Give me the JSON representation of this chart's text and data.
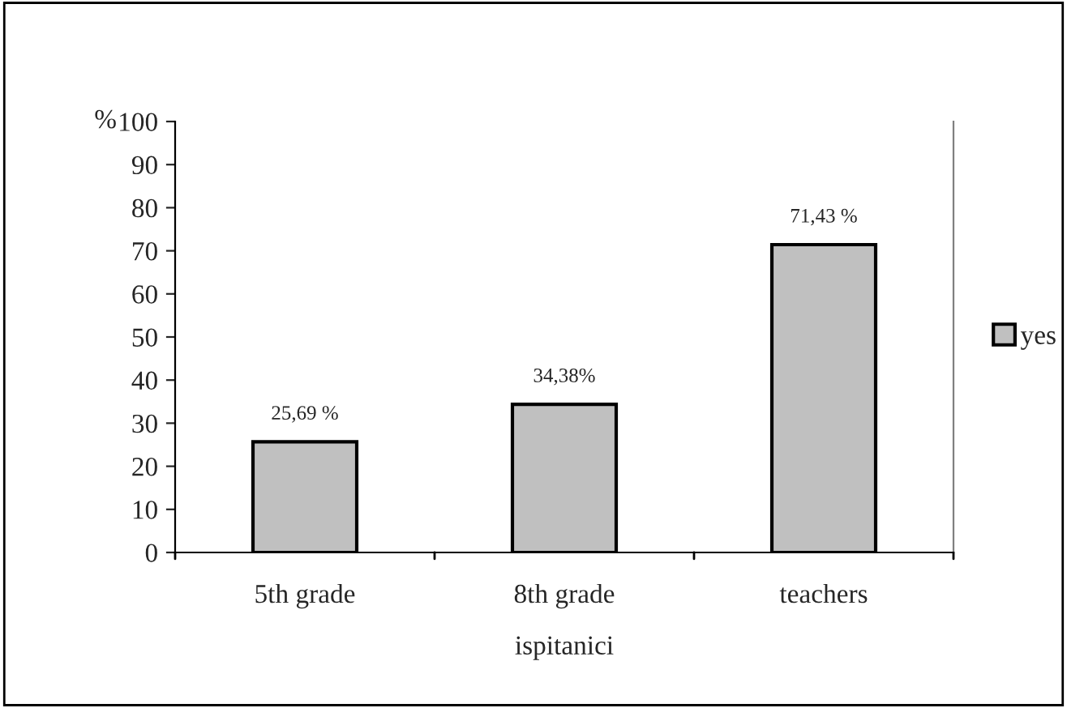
{
  "chart_data": {
    "type": "bar",
    "categories": [
      "5th grade",
      "8th grade",
      "teachers"
    ],
    "series": [
      {
        "name": "yes",
        "color": "#c0c0c0",
        "values": [
          25.69,
          34.38,
          71.43
        ],
        "value_labels": [
          "25,69 %",
          "34,38%",
          "71,43 %"
        ]
      }
    ],
    "xlabel": "ispitanici",
    "ylabel": "%",
    "ylim": [
      0,
      100
    ],
    "yticks": [
      0,
      10,
      20,
      30,
      40,
      50,
      60,
      70,
      80,
      90,
      100
    ],
    "grid": false,
    "legend": "right"
  }
}
